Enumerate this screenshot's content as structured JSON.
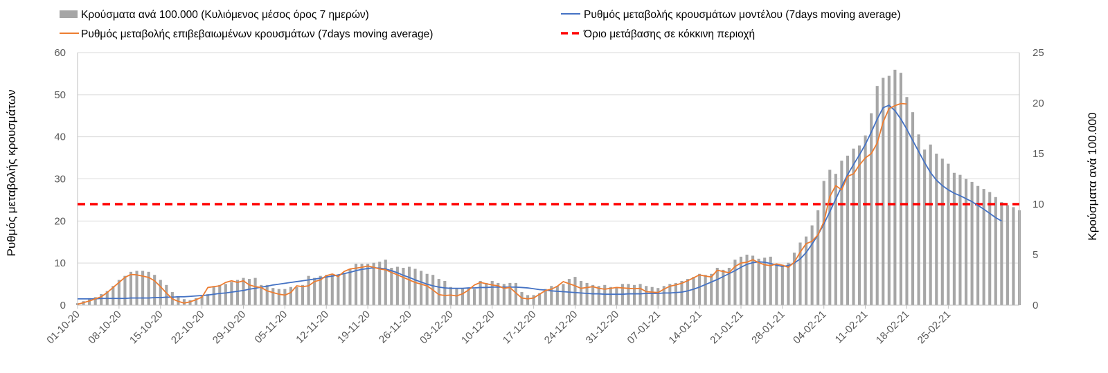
{
  "chart_data": {
    "type": "bar+line",
    "title": "",
    "y_left_label": "Ρυθμός μεταβολής κρουσμάτων",
    "y_right_label": "Κρούσματα ανά 100.000",
    "y_left_range": [
      0,
      60
    ],
    "y_left_ticks": [
      "0",
      "10",
      "20",
      "30",
      "40",
      "50",
      "60"
    ],
    "y_right_range": [
      0,
      25
    ],
    "y_right_ticks": [
      "0",
      "5",
      "10",
      "15",
      "20",
      "25"
    ],
    "x_labels": [
      "01-10-20",
      "08-10-20",
      "15-10-20",
      "22-10-20",
      "29-10-20",
      "05-11-20",
      "12-11-20",
      "19-11-20",
      "26-11-20",
      "03-12-20",
      "10-12-20",
      "17-12-20",
      "24-12-20",
      "31-12-20",
      "07-01-21",
      "14-01-21",
      "21-01-21",
      "28-01-21",
      "04-02-21",
      "11-02-21",
      "18-02-21",
      "25-02-21"
    ],
    "threshold_left_value": 24,
    "legend": {
      "bars": "Κρούσματα ανά 100.000 (Κυλιόμενος μέσος όρος 7 ημερών)",
      "model": "Ρυθμός μεταβολής κρουσμάτων μοντέλου (7days moving average)",
      "confirmed": "Ρυθμός μεταβολής επιβεβαιωμένων κρουσμάτων (7days moving average)",
      "threshold": "Όριο μετάβασης σε κόκκινη περιοχή"
    },
    "colors": {
      "bars": "#a6a6a6",
      "model": "#4472c4",
      "confirmed": "#ed7d31",
      "threshold": "#ff0000",
      "grid": "#d9d9d9",
      "axis": "#bfbfbf"
    },
    "series": [
      {
        "name": "Κρούσματα ανά 100.000 (Κυλιόμενος μέσος όρος 7 ημερών)",
        "axis": "right",
        "kind": "bar",
        "values": [
          0.2,
          0.4,
          0.7,
          0.8,
          1.1,
          1.4,
          1.9,
          2.5,
          2.9,
          3.3,
          3.4,
          3.4,
          3.3,
          3.0,
          2.5,
          2.0,
          1.3,
          0.8,
          0.6,
          0.5,
          0.7,
          0.9,
          1.1,
          1.9,
          2.0,
          2.1,
          2.3,
          2.5,
          2.7,
          2.6,
          2.7,
          2.0,
          2.0,
          1.7,
          1.6,
          1.6,
          1.8,
          1.8,
          2.0,
          2.9,
          2.7,
          2.9,
          3.0,
          3.1,
          3.0,
          3.2,
          3.6,
          4.1,
          4.1,
          4.1,
          4.2,
          4.3,
          4.5,
          3.7,
          3.8,
          3.7,
          3.8,
          3.6,
          3.4,
          3.1,
          3.0,
          2.6,
          2.4,
          1.8,
          1.7,
          1.7,
          1.7,
          1.6,
          2.4,
          2.2,
          2.4,
          2.2,
          2.1,
          2.2,
          2.2,
          1.3,
          1.0,
          1.0,
          1.2,
          1.6,
          1.9,
          1.9,
          2.1,
          2.6,
          2.8,
          2.4,
          2.2,
          2.0,
          1.9,
          2.0,
          1.8,
          1.8,
          2.1,
          2.1,
          2.0,
          2.1,
          1.9,
          1.8,
          1.7,
          1.9,
          2.1,
          2.2,
          2.4,
          2.6,
          2.8,
          3.1,
          3.0,
          3.1,
          3.7,
          3.5,
          3.7,
          4.5,
          4.8,
          5.0,
          4.9,
          4.6,
          4.7,
          4.8,
          4.1,
          4.0,
          4.2,
          5.2,
          6.2,
          6.8,
          7.9,
          9.4,
          12.3,
          13.4,
          13.0,
          14.3,
          14.8,
          15.5,
          15.8,
          16.8,
          19.0,
          21.7,
          22.5,
          22.7,
          23.3,
          23.0,
          20.6,
          19.1,
          16.9,
          15.4,
          15.9,
          15.0,
          14.5,
          14.0,
          13.1,
          12.9,
          12.5,
          12.2,
          11.8,
          11.5,
          11.2,
          10.7,
          10.2,
          9.9,
          9.7,
          9.4
        ]
      },
      {
        "name": "Ρυθμός μεταβολής κρουσμάτων μοντέλου (7days moving average)",
        "axis": "left",
        "kind": "line",
        "values": [
          1.5,
          1.5,
          1.5,
          1.5,
          1.6,
          1.6,
          1.6,
          1.6,
          1.6,
          1.7,
          1.7,
          1.7,
          1.7,
          1.8,
          1.8,
          1.9,
          1.9,
          2.0,
          2.0,
          2.1,
          2.2,
          2.3,
          2.4,
          2.6,
          2.8,
          2.9,
          3.1,
          3.3,
          3.5,
          3.8,
          4.0,
          4.3,
          4.5,
          4.8,
          5.0,
          5.2,
          5.4,
          5.6,
          5.8,
          6.0,
          6.2,
          6.4,
          6.7,
          6.9,
          7.2,
          7.5,
          7.8,
          8.2,
          8.5,
          8.7,
          8.9,
          8.8,
          8.6,
          8.2,
          7.7,
          7.1,
          6.6,
          6.0,
          5.5,
          5.0,
          4.6,
          4.3,
          4.1,
          4.0,
          4.0,
          4.0,
          4.1,
          4.1,
          4.2,
          4.2,
          4.3,
          4.3,
          4.3,
          4.3,
          4.3,
          4.2,
          4.1,
          3.9,
          3.7,
          3.6,
          3.4,
          3.3,
          3.2,
          3.1,
          3.0,
          2.9,
          2.8,
          2.7,
          2.7,
          2.6,
          2.6,
          2.6,
          2.6,
          2.7,
          2.7,
          2.7,
          2.8,
          2.8,
          2.8,
          2.9,
          2.9,
          3.0,
          3.1,
          3.4,
          3.8,
          4.3,
          4.9,
          5.5,
          6.1,
          6.8,
          7.5,
          8.2,
          9.0,
          9.7,
          10.1,
          10.3,
          10.2,
          9.9,
          9.5,
          9.2,
          9.4,
          10.0,
          11.0,
          12.5,
          14.5,
          16.7,
          19.3,
          22.2,
          25.2,
          28.2,
          31.0,
          33.4,
          35.7,
          38.2,
          41.1,
          44.2,
          46.9,
          47.5,
          46.2,
          44.2,
          41.8,
          39.1,
          36.5,
          33.9,
          31.5,
          29.7,
          28.4,
          27.4,
          26.6,
          26.0,
          25.3,
          24.6,
          23.7,
          22.8,
          21.8,
          20.8,
          20.0
        ]
      },
      {
        "name": "Ρυθμός μεταβολής επιβεβαιωμένων κρουσμάτων (7days moving average)",
        "axis": "left",
        "kind": "line",
        "values": [
          0.2,
          0.6,
          1.0,
          1.5,
          2.0,
          3.0,
          4.2,
          5.4,
          6.6,
          7.3,
          7.2,
          6.9,
          6.6,
          5.8,
          4.4,
          2.9,
          1.5,
          0.9,
          0.5,
          0.8,
          1.3,
          1.9,
          4.2,
          4.4,
          4.6,
          5.4,
          5.8,
          5.4,
          5.8,
          4.8,
          4.4,
          4.2,
          3.4,
          3.0,
          2.6,
          2.4,
          3.0,
          4.6,
          4.4,
          4.6,
          5.6,
          6.0,
          7.0,
          7.4,
          6.8,
          8.0,
          8.6,
          8.8,
          9.0,
          9.3,
          9.0,
          8.6,
          8.4,
          7.8,
          7.2,
          6.6,
          6.0,
          5.4,
          5.0,
          4.6,
          3.6,
          2.5,
          2.3,
          2.4,
          2.2,
          2.7,
          3.6,
          4.8,
          5.4,
          5.1,
          4.8,
          4.6,
          4.0,
          4.2,
          2.9,
          1.7,
          1.5,
          1.7,
          2.6,
          3.5,
          3.8,
          4.5,
          5.6,
          5.1,
          4.6,
          4.0,
          4.2,
          4.4,
          4.0,
          3.8,
          4.0,
          4.2,
          4.1,
          4.0,
          3.9,
          4.0,
          3.2,
          3.1,
          3.0,
          3.8,
          4.5,
          4.8,
          5.2,
          5.8,
          6.5,
          7.2,
          6.9,
          6.7,
          8.3,
          8.0,
          7.7,
          9.2,
          10.0,
          10.2,
          10.8,
          10.1,
          9.6,
          9.4,
          9.8,
          9.5,
          9.0,
          10.2,
          12.6,
          14.6,
          15.2,
          16.7,
          19.8,
          25.8,
          28.4,
          27.4,
          30.6,
          31.2,
          33.3,
          35.0,
          36.0,
          38.5,
          43.5,
          46.7,
          47.4,
          47.9,
          47.8
        ]
      },
      {
        "name": "Όριο μετάβασης σε κόκκινη περιοχή",
        "axis": "left",
        "kind": "threshold",
        "values": [
          24
        ]
      }
    ]
  }
}
